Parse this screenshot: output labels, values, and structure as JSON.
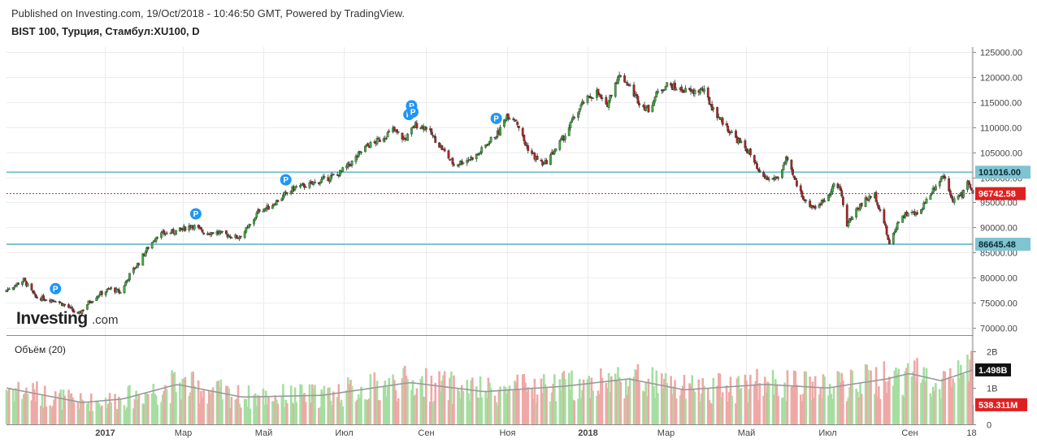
{
  "header": {
    "published": "Published on Investing.com, 19/Oct/2018 - 10:46:50 GMT, Powered by TradingView.",
    "title": "BIST 100, Турция, Стамбул:XU100, D"
  },
  "logo": {
    "brand": "Investing",
    "suffix": ".com"
  },
  "volume_title": "Объём (20)",
  "colors": {
    "up": "#3cae3c",
    "down": "#b22222",
    "up_vol": "#a5dea0",
    "down_vol": "#eea8a6",
    "hline": "#80c4d2",
    "last_price": "#e02020",
    "ma": "#999999",
    "grid": "#ececec"
  },
  "chart_data": [
    {
      "type": "candlestick",
      "title": "BIST 100, Турция, Стамбул:XU100, D",
      "x_range": [
        "2016-10-19",
        "2018-10-19"
      ],
      "ylim": [
        68500,
        126000
      ],
      "y_ticks": [
        "125000.00",
        "120000.00",
        "115000.00",
        "110000.00",
        "105000.00",
        "100000.00",
        "95000.00",
        "90000.00",
        "85000.00",
        "80000.00",
        "75000.00",
        "70000.00"
      ],
      "y_tick_values": [
        125000,
        120000,
        115000,
        110000,
        105000,
        100000,
        95000,
        90000,
        85000,
        80000,
        75000,
        70000
      ],
      "x_ticks": [
        {
          "label": "2017",
          "date": "2017-01-01",
          "bold": true
        },
        {
          "label": "Мар",
          "date": "2017-03-01",
          "bold": false
        },
        {
          "label": "Май",
          "date": "2017-05-01",
          "bold": false
        },
        {
          "label": "Июл",
          "date": "2017-07-01",
          "bold": false
        },
        {
          "label": "Сен",
          "date": "2017-09-01",
          "bold": false
        },
        {
          "label": "Ноя",
          "date": "2017-11-01",
          "bold": false
        },
        {
          "label": "2018",
          "date": "2018-01-01",
          "bold": true
        },
        {
          "label": "Мар",
          "date": "2018-03-01",
          "bold": false
        },
        {
          "label": "Май",
          "date": "2018-05-01",
          "bold": false
        },
        {
          "label": "Июл",
          "date": "2018-07-01",
          "bold": false
        },
        {
          "label": "Сен",
          "date": "2018-09-01",
          "bold": false
        },
        {
          "label": "18",
          "date": "2018-10-18",
          "bold": false
        }
      ],
      "close_path": [
        [
          "2016-10-19",
          77500
        ],
        [
          "2016-11-01",
          79500
        ],
        [
          "2016-11-10",
          76000
        ],
        [
          "2016-11-25",
          75500
        ],
        [
          "2016-12-05",
          74000
        ],
        [
          "2016-12-12",
          72500
        ],
        [
          "2016-12-20",
          75000
        ],
        [
          "2016-12-27",
          76500
        ],
        [
          "2017-01-06",
          77800
        ],
        [
          "2017-01-13",
          77000
        ],
        [
          "2017-01-20",
          80500
        ],
        [
          "2017-01-27",
          83000
        ],
        [
          "2017-02-03",
          86000
        ],
        [
          "2017-02-10",
          88500
        ],
        [
          "2017-02-20",
          89000
        ],
        [
          "2017-02-28",
          89500
        ],
        [
          "2017-03-08",
          90500
        ],
        [
          "2017-03-17",
          89000
        ],
        [
          "2017-03-27",
          89000
        ],
        [
          "2017-04-03",
          88500
        ],
        [
          "2017-04-12",
          88000
        ],
        [
          "2017-04-20",
          90000
        ],
        [
          "2017-04-28",
          93500
        ],
        [
          "2017-05-05",
          94000
        ],
        [
          "2017-05-15",
          96000
        ],
        [
          "2017-05-25",
          98000
        ],
        [
          "2017-06-05",
          98500
        ],
        [
          "2017-06-15",
          99500
        ],
        [
          "2017-06-26",
          100500
        ],
        [
          "2017-07-07",
          103000
        ],
        [
          "2017-07-17",
          106000
        ],
        [
          "2017-07-28",
          107500
        ],
        [
          "2017-08-07",
          109500
        ],
        [
          "2017-08-16",
          107500
        ],
        [
          "2017-08-24",
          110500
        ],
        [
          "2017-09-01",
          110000
        ],
        [
          "2017-09-08",
          107500
        ],
        [
          "2017-09-15",
          105000
        ],
        [
          "2017-09-22",
          102500
        ],
        [
          "2017-10-02",
          103500
        ],
        [
          "2017-10-10",
          104500
        ],
        [
          "2017-10-18",
          107000
        ],
        [
          "2017-10-26",
          109000
        ],
        [
          "2017-11-01",
          112500
        ],
        [
          "2017-11-08",
          111500
        ],
        [
          "2017-11-15",
          106500
        ],
        [
          "2017-11-22",
          104000
        ],
        [
          "2017-11-29",
          102500
        ],
        [
          "2017-12-06",
          105000
        ],
        [
          "2017-12-14",
          108000
        ],
        [
          "2017-12-22",
          112000
        ],
        [
          "2017-12-29",
          115000
        ],
        [
          "2018-01-08",
          117000
        ],
        [
          "2018-01-15",
          114000
        ],
        [
          "2018-01-22",
          119000
        ],
        [
          "2018-01-26",
          120500
        ],
        [
          "2018-02-02",
          118000
        ],
        [
          "2018-02-09",
          115000
        ],
        [
          "2018-02-16",
          113500
        ],
        [
          "2018-02-23",
          117000
        ],
        [
          "2018-03-02",
          118500
        ],
        [
          "2018-03-12",
          117500
        ],
        [
          "2018-03-21",
          117000
        ],
        [
          "2018-03-29",
          117500
        ],
        [
          "2018-04-06",
          113500
        ],
        [
          "2018-04-16",
          110000
        ],
        [
          "2018-04-24",
          107500
        ],
        [
          "2018-05-03",
          105000
        ],
        [
          "2018-05-11",
          100500
        ],
        [
          "2018-05-18",
          99500
        ],
        [
          "2018-05-25",
          100000
        ],
        [
          "2018-05-31",
          103500
        ],
        [
          "2018-06-08",
          98500
        ],
        [
          "2018-06-15",
          95000
        ],
        [
          "2018-06-22",
          94000
        ],
        [
          "2018-06-29",
          95500
        ],
        [
          "2018-07-06",
          98500
        ],
        [
          "2018-07-11",
          97500
        ],
        [
          "2018-07-16",
          90500
        ],
        [
          "2018-07-23",
          93500
        ],
        [
          "2018-07-30",
          95500
        ],
        [
          "2018-08-06",
          96500
        ],
        [
          "2018-08-13",
          91000
        ],
        [
          "2018-08-17",
          86500
        ],
        [
          "2018-08-24",
          91500
        ],
        [
          "2018-08-31",
          93000
        ],
        [
          "2018-09-07",
          92500
        ],
        [
          "2018-09-14",
          95500
        ],
        [
          "2018-09-21",
          98500
        ],
        [
          "2018-09-27",
          100500
        ],
        [
          "2018-10-04",
          95500
        ],
        [
          "2018-10-11",
          96500
        ],
        [
          "2018-10-15",
          99500
        ],
        [
          "2018-10-19",
          96742.58
        ]
      ],
      "horizontal_lines": [
        {
          "value": 101016.0,
          "label": "101016.00"
        },
        {
          "value": 86645.48,
          "label": "86645.48"
        }
      ],
      "last_price": {
        "value": 96742.58,
        "label": "96742.58"
      },
      "markers": [
        {
          "date": "2016-11-25",
          "label": "P"
        },
        {
          "date": "2017-03-11",
          "label": "P"
        },
        {
          "date": "2017-05-18",
          "label": "P"
        },
        {
          "date": "2017-08-19",
          "label": "P"
        },
        {
          "date": "2017-08-21",
          "label": "P"
        },
        {
          "date": "2017-08-22",
          "label": "P"
        },
        {
          "date": "2017-10-24",
          "label": "P"
        }
      ]
    },
    {
      "type": "bar",
      "title": "Объём (20)",
      "ylim": [
        0,
        2300000000
      ],
      "y_ticks": [
        "2B",
        "1B",
        "0"
      ],
      "y_tick_values": [
        2000000000,
        1000000000,
        0
      ],
      "ma_path": [
        [
          "2016-10-19",
          1000000000
        ],
        [
          "2016-12-15",
          600000000
        ],
        [
          "2017-01-15",
          700000000
        ],
        [
          "2017-02-25",
          1100000000
        ],
        [
          "2017-04-15",
          750000000
        ],
        [
          "2017-06-15",
          800000000
        ],
        [
          "2017-08-20",
          1150000000
        ],
        [
          "2017-10-15",
          900000000
        ],
        [
          "2017-12-15",
          1050000000
        ],
        [
          "2018-02-01",
          1250000000
        ],
        [
          "2018-03-15",
          950000000
        ],
        [
          "2018-05-15",
          1100000000
        ],
        [
          "2018-07-01",
          1000000000
        ],
        [
          "2018-08-15",
          1250000000
        ],
        [
          "2018-09-01",
          1400000000
        ],
        [
          "2018-09-25",
          1200000000
        ],
        [
          "2018-10-19",
          1498000000
        ]
      ],
      "ma_last": {
        "value": 1498000000,
        "label": "1.498B"
      },
      "last_volume": {
        "value": 538311000,
        "label": "538.311M"
      }
    }
  ]
}
